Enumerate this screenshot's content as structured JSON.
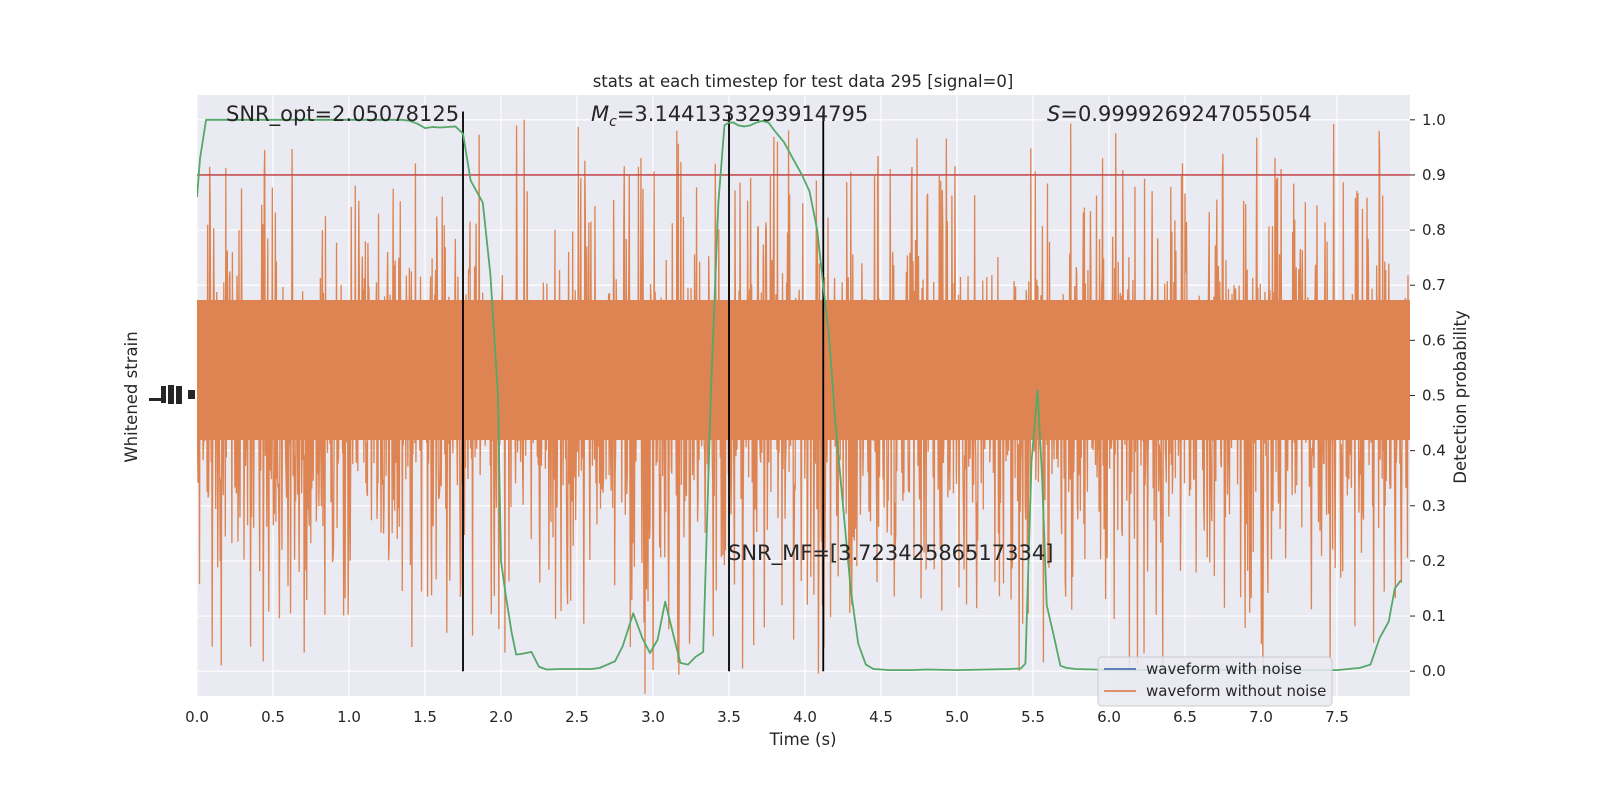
{
  "chart_data": {
    "type": "line",
    "title": "stats at each timestep for test data 295 [signal=0]",
    "xlabel": "Time (s)",
    "ylabel_left": "Whitened strain",
    "ylabel_right": "Detection probability",
    "xlim": [
      0.0,
      7.98
    ],
    "ylim_right": [
      -0.045,
      1.045
    ],
    "x_ticks": [
      0.0,
      0.5,
      1.0,
      1.5,
      2.0,
      2.5,
      3.0,
      3.5,
      4.0,
      4.5,
      5.0,
      5.5,
      6.0,
      6.5,
      7.0,
      7.5
    ],
    "x_tick_labels": [
      "0.0",
      "0.5",
      "1.0",
      "1.5",
      "2.0",
      "2.5",
      "3.0",
      "3.5",
      "4.0",
      "4.5",
      "5.0",
      "5.5",
      "6.0",
      "6.5",
      "7.0",
      "7.5"
    ],
    "y_right_ticks": [
      0.0,
      0.1,
      0.2,
      0.3,
      0.4,
      0.5,
      0.6,
      0.7,
      0.8,
      0.9,
      1.0
    ],
    "y_right_tick_labels": [
      "0.0",
      "0.1",
      "0.2",
      "0.3",
      "0.4",
      "0.5",
      "0.6",
      "0.7",
      "0.8",
      "0.9",
      "1.0"
    ],
    "grid": true,
    "legend_position": "lower-right",
    "annotations": {
      "snr_opt": "SNR_opt=2.05078125",
      "mc_symbol": "M",
      "mc_subscript": "c",
      "mc_value": "=3.1441333293914795",
      "s_symbol": "S",
      "s_value": "=0.9999269247055054",
      "snr_mf": "SNR_MF=[3.72342586517334]"
    },
    "threshold": 0.9,
    "vertical_lines_x": [
      1.75,
      3.5,
      4.12
    ],
    "series": [
      {
        "name": "waveform with noise",
        "color": "#4c72b0",
        "style": "strain"
      },
      {
        "name": "waveform without noise",
        "color": "#dd8452",
        "style": "strain"
      },
      {
        "color": "#55a868",
        "x": [
          0.0,
          0.02,
          0.06,
          0.15,
          0.3,
          0.5,
          0.8,
          1.0,
          1.2,
          1.3,
          1.35,
          1.4,
          1.45,
          1.5,
          1.55,
          1.6,
          1.65,
          1.7,
          1.75,
          1.8,
          1.88,
          1.93,
          1.98,
          2.0,
          2.03,
          2.07,
          2.1,
          2.15,
          2.2,
          2.25,
          2.3,
          2.4,
          2.5,
          2.6,
          2.65,
          2.7,
          2.75,
          2.8,
          2.87,
          2.93,
          2.98,
          3.03,
          3.08,
          3.13,
          3.18,
          3.23,
          3.28,
          3.33,
          3.38,
          3.43,
          3.47,
          3.5,
          3.53,
          3.56,
          3.6,
          3.64,
          3.68,
          3.72,
          3.76,
          3.8,
          3.86,
          3.92,
          3.98,
          4.03,
          4.08,
          4.12,
          4.16,
          4.2,
          4.25,
          4.3,
          4.35,
          4.4,
          4.45,
          4.5,
          4.55,
          4.62,
          4.7,
          4.8,
          5.0,
          5.2,
          5.35,
          5.42,
          5.45,
          5.49,
          5.53,
          5.56,
          5.59,
          5.64,
          5.68,
          5.72,
          5.78,
          5.9,
          6.1,
          6.3,
          6.5,
          6.7,
          6.9,
          7.1,
          7.3,
          7.5,
          7.65,
          7.72,
          7.78,
          7.84,
          7.88,
          7.92
        ],
        "y": [
          0.86,
          0.93,
          1.0,
          1.0,
          1.0,
          1.0,
          1.0,
          1.0,
          1.0,
          1.0,
          1.0,
          0.998,
          0.993,
          0.985,
          0.987,
          0.986,
          0.987,
          0.988,
          0.975,
          0.89,
          0.85,
          0.72,
          0.5,
          0.2,
          0.14,
          0.07,
          0.03,
          0.032,
          0.035,
          0.008,
          0.003,
          0.004,
          0.004,
          0.004,
          0.006,
          0.012,
          0.018,
          0.045,
          0.105,
          0.06,
          0.033,
          0.057,
          0.126,
          0.07,
          0.015,
          0.012,
          0.026,
          0.035,
          0.5,
          0.85,
          0.99,
          0.995,
          0.995,
          0.99,
          0.988,
          0.99,
          0.995,
          0.998,
          0.995,
          0.98,
          0.96,
          0.93,
          0.9,
          0.87,
          0.8,
          0.7,
          0.6,
          0.45,
          0.3,
          0.15,
          0.05,
          0.012,
          0.004,
          0.003,
          0.002,
          0.002,
          0.002,
          0.003,
          0.002,
          0.003,
          0.004,
          0.005,
          0.014,
          0.38,
          0.51,
          0.35,
          0.12,
          0.06,
          0.01,
          0.006,
          0.004,
          0.003,
          0.002,
          0.002,
          0.002,
          0.002,
          0.002,
          0.002,
          0.002,
          0.002,
          0.006,
          0.012,
          0.06,
          0.09,
          0.15,
          0.165
        ]
      }
    ]
  }
}
